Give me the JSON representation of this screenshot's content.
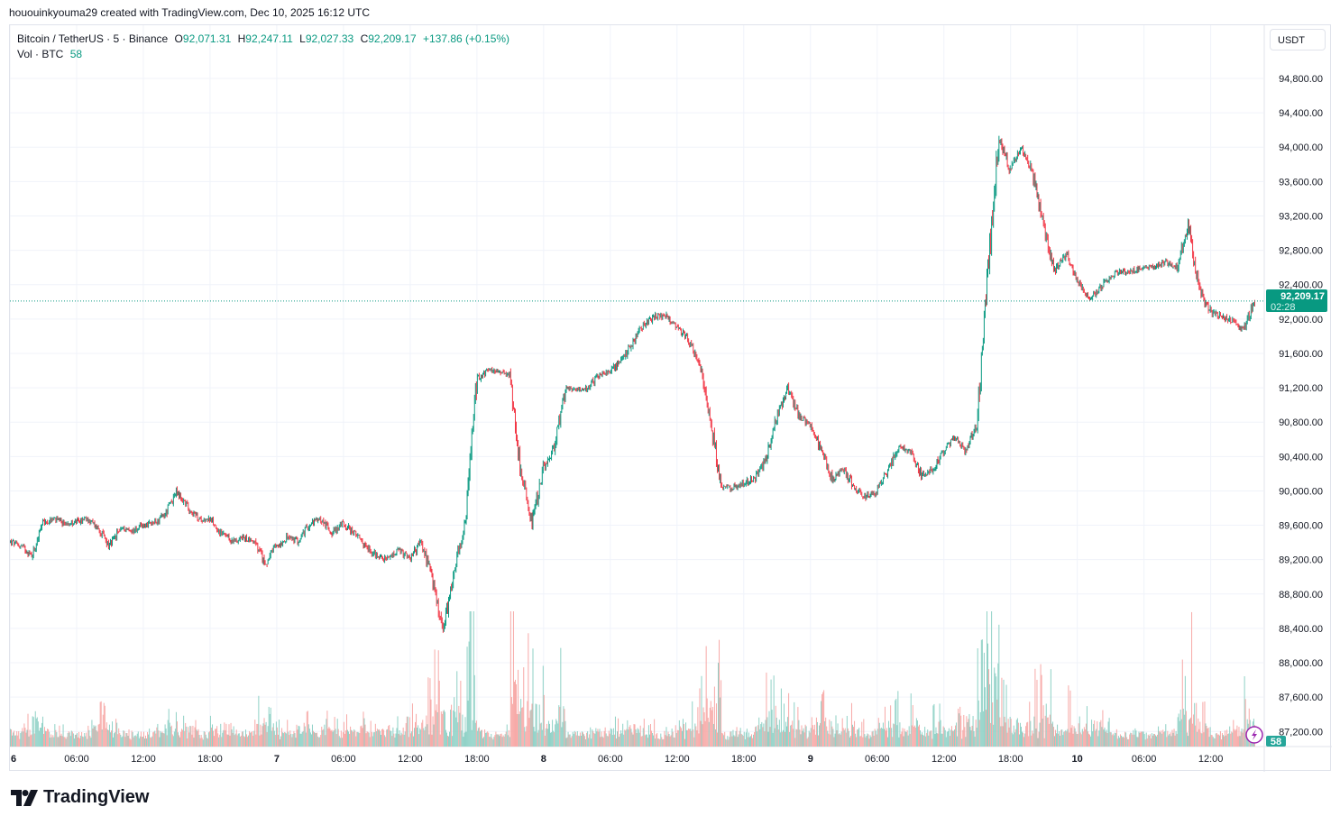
{
  "credit": "hououinkyouma29 created with TradingView.com, Dec 10, 2025 16:12 UTC",
  "legend": {
    "symbol": "Bitcoin / TetherUS · 5 · Binance",
    "open_label": "O",
    "open": "92,071.31",
    "high_label": "H",
    "high": "92,247.11",
    "low_label": "L",
    "low": "92,027.33",
    "close_label": "C",
    "close": "92,209.17",
    "change": "+137.86 (+0.15%)",
    "vol_label": "Vol · BTC",
    "vol": "58"
  },
  "currency_button": "USDT",
  "last_price_label": "92,209.17",
  "countdown": "02:28",
  "volume_label": "58",
  "logo_text": "TradingView",
  "colors": {
    "up": "#089981",
    "down": "#f23645",
    "up_vol": "#8fd1c6",
    "down_vol": "#f7a9a7",
    "accent": "#089981",
    "grid": "#f0f3fa",
    "alert": "#9c27b0"
  },
  "chart_data": {
    "type": "candlestick",
    "title": "Bitcoin / TetherUS · 5 · Binance",
    "grid": true,
    "yaxis_side": "right",
    "ylim": [
      87200,
      94800
    ],
    "y_ticks": [
      "94,800.00",
      "94,400.00",
      "94,000.00",
      "93,600.00",
      "93,200.00",
      "92,800.00",
      "92,400.00",
      "92,000.00",
      "91,600.00",
      "91,200.00",
      "90,800.00",
      "90,400.00",
      "90,000.00",
      "89,600.00",
      "89,200.00",
      "88,800.00",
      "88,400.00",
      "88,000.00",
      "87,600.00",
      "87,200.00"
    ],
    "x_ticks": [
      "6",
      "06:00",
      "12:00",
      "18:00",
      "7",
      "06:00",
      "12:00",
      "18:00",
      "8",
      "06:00",
      "12:00",
      "18:00",
      "9",
      "06:00",
      "12:00",
      "18:00",
      "10",
      "06:00",
      "12:00"
    ],
    "hourly_close_start": "Dec 6 00:00",
    "hourly_close": [
      89410,
      89360,
      89250,
      89620,
      89670,
      89620,
      89640,
      89670,
      89565,
      89356,
      89565,
      89535,
      89597,
      89620,
      89723,
      89985,
      89828,
      89670,
      89670,
      89513,
      89408,
      89460,
      89408,
      89146,
      89356,
      89460,
      89408,
      89620,
      89670,
      89513,
      89620,
      89513,
      89356,
      89250,
      89200,
      89303,
      89200,
      89408,
      88990,
      88360,
      89093,
      89620,
      91296,
      91401,
      91401,
      91349,
      90247,
      89620,
      90247,
      90510,
      91191,
      91191,
      91191,
      91349,
      91401,
      91506,
      91716,
      91926,
      92031,
      92031,
      91926,
      91768,
      91506,
      90877,
      90037,
      90037,
      90090,
      90142,
      90352,
      90877,
      91191,
      90877,
      90772,
      90457,
      90142,
      90247,
      90037,
      89933,
      89985,
      90247,
      90510,
      90457,
      90194,
      90247,
      90457,
      90615,
      90457,
      90772,
      92555,
      94129,
      93710,
      94024,
      93710,
      93080,
      92555,
      92765,
      92450,
      92240,
      92345,
      92503,
      92555,
      92555,
      92608,
      92608,
      92660,
      92608,
      93080,
      92345,
      92083,
      92031,
      91978,
      91873,
      92209
    ],
    "notable_points": {
      "high": 94600,
      "low": 88000
    },
    "volume_typical_btc": [
      40,
      600
    ],
    "last_volume_btc": 58
  }
}
